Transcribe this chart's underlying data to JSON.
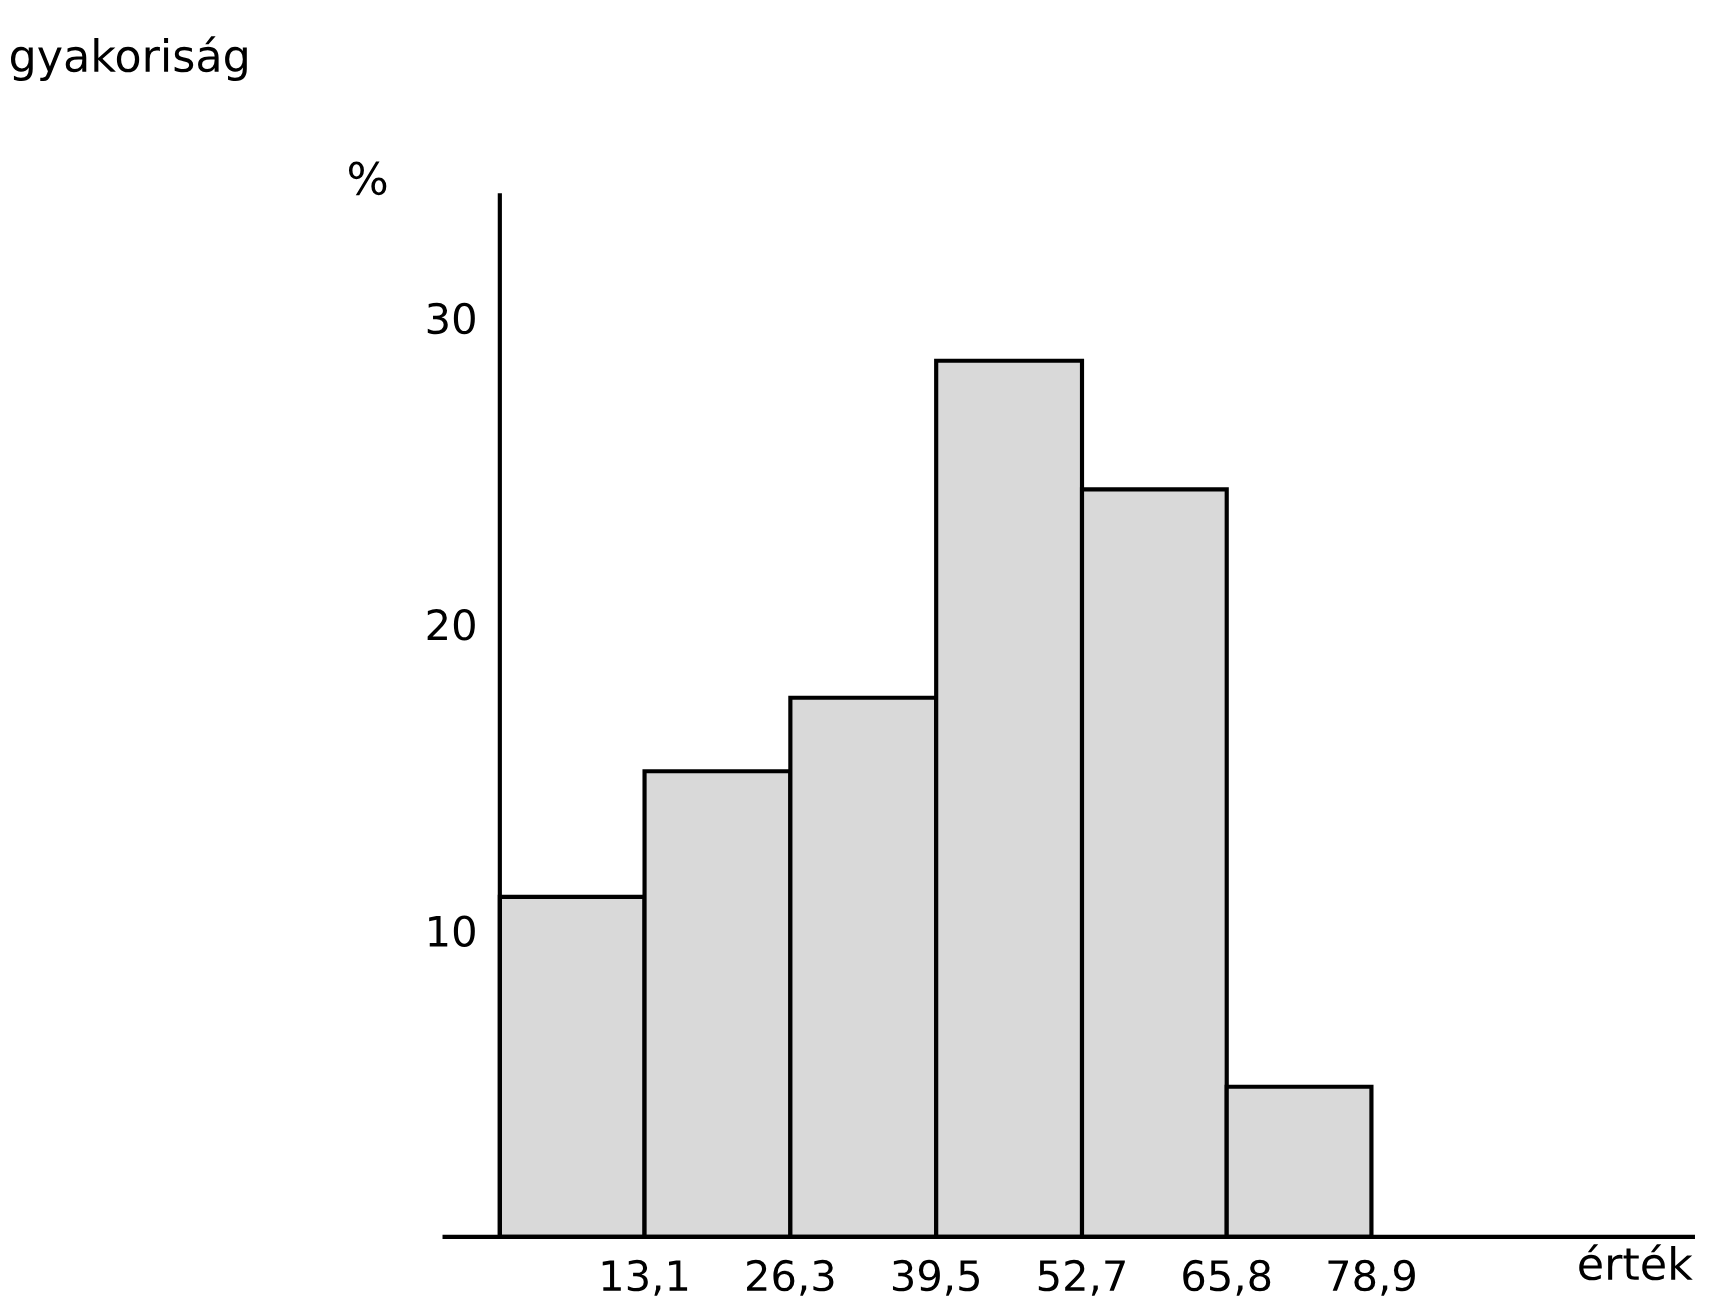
{
  "chart_data": {
    "type": "histogram",
    "xlabel": "érték",
    "annotations": [
      "gyakoriság",
      "%"
    ],
    "bins": [
      0,
      13.1,
      26.3,
      39.5,
      52.7,
      65.8,
      78.9
    ],
    "values": [
      11.1,
      15.2,
      17.6,
      28.6,
      24.4,
      4.9
    ],
    "color": "#d9d9d9",
    "xlim": [
      -5,
      108
    ],
    "ylim": [
      0,
      34
    ],
    "xticks": [
      {
        "value": 13.1,
        "label": "13,1"
      },
      {
        "value": 26.3,
        "label": "26,3"
      },
      {
        "value": 39.5,
        "label": "39,5"
      },
      {
        "value": 52.7,
        "label": "52,7"
      },
      {
        "value": 65.8,
        "label": "65,8"
      },
      {
        "value": 78.9,
        "label": "78,9"
      }
    ],
    "yticks": [
      10,
      20,
      30
    ],
    "grid": false
  }
}
